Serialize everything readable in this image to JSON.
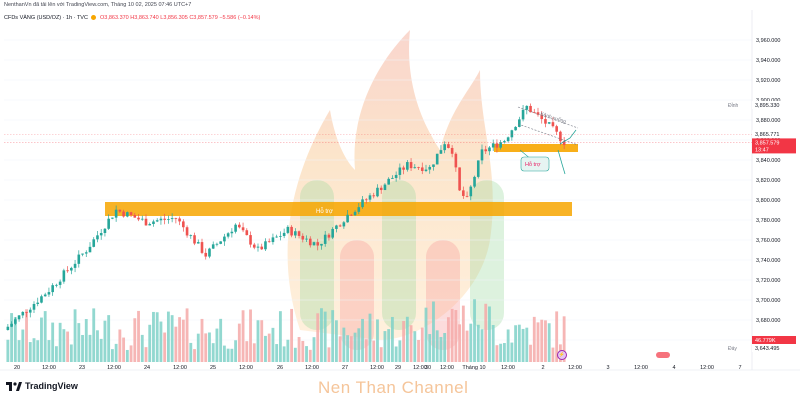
{
  "header": {
    "publisher_line": "NenthanVn đã tải lên với TradingView.com, Tháng 10 02, 2025 07:46 UTC+7",
    "symbol": "CFDs VÀNG (USD/OZ) · 1h · TVC",
    "o": "O3,863.370",
    "h": "H3,863.740",
    "l": "L3,856.305",
    "c": "C3,857.579",
    "chg": "−5.586 (−0.14%)"
  },
  "branding": {
    "logo_text": "TradingView",
    "watermark": "Nen Than Channel"
  },
  "annotations": {
    "support_major": "Hỗ trợ",
    "support_minor": "Hỗ trợ",
    "channel": "Kênh xuống"
  },
  "price_scale": {
    "labels": [
      "3,960.000",
      "3,940.000",
      "3,920.000",
      "3,900.000",
      "3,880.000",
      "3,860.000",
      "3,840.000",
      "3,820.000",
      "3,800.000",
      "3,780.000",
      "3,760.000",
      "3,740.000",
      "3,720.000",
      "3,700.000",
      "3,680.000",
      "3,660.000"
    ],
    "tag_peak_label": "Đỉnh",
    "tag_peak_value": "3,895.330",
    "tag_price_a": "3,865.771",
    "tag_last_price": "3,857.579",
    "tag_countdown": "13:47",
    "tag_bottom_label": "Đáy",
    "tag_bottom_value": "3,643.495",
    "tag_volume": "46.779K"
  },
  "time_axis": [
    "20",
    "12:00",
    "23",
    "12:00",
    "24",
    "12:00",
    "25",
    "12:00",
    "26",
    "12:00",
    "27",
    "12:00",
    "29",
    "12:00",
    "30",
    "12:00",
    "Tháng 10",
    "12:00",
    "2",
    "12:00",
    "3",
    "12:00",
    "4",
    "12:00",
    "7"
  ],
  "colors": {
    "up": "#26a69a",
    "down": "#ef5350",
    "support_zone": "#f7a600"
  },
  "chart_data": {
    "type": "candlestick",
    "ylim": [
      3640,
      3970
    ],
    "support_zone_major": [
      3790,
      3798
    ],
    "support_zone_minor": [
      3850,
      3856
    ],
    "key_points": [
      {
        "t": 0,
        "price": 3670
      },
      {
        "t": 12,
        "price": 3710
      },
      {
        "t": 22,
        "price": 3750
      },
      {
        "t": 30,
        "price": 3790
      },
      {
        "t": 38,
        "price": 3778
      },
      {
        "t": 46,
        "price": 3782
      },
      {
        "t": 54,
        "price": 3745
      },
      {
        "t": 62,
        "price": 3775
      },
      {
        "t": 68,
        "price": 3750
      },
      {
        "t": 76,
        "price": 3770
      },
      {
        "t": 84,
        "price": 3755
      },
      {
        "t": 92,
        "price": 3785
      },
      {
        "t": 100,
        "price": 3810
      },
      {
        "t": 108,
        "price": 3835
      },
      {
        "t": 114,
        "price": 3832
      },
      {
        "t": 118,
        "price": 3858
      },
      {
        "t": 120,
        "price": 3850
      },
      {
        "t": 122,
        "price": 3808
      },
      {
        "t": 124,
        "price": 3800
      },
      {
        "t": 128,
        "price": 3848
      },
      {
        "t": 134,
        "price": 3860
      },
      {
        "t": 140,
        "price": 3893
      },
      {
        "t": 146,
        "price": 3874
      },
      {
        "t": 150,
        "price": 3858
      }
    ]
  }
}
